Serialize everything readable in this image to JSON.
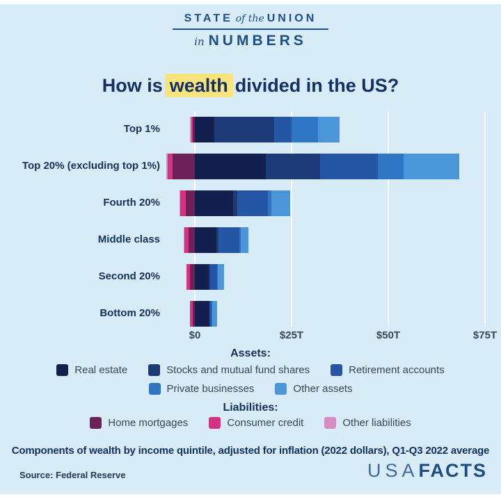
{
  "header": {
    "logo": {
      "state": "STATE",
      "of_the": "of the",
      "union": "UNION",
      "in": "in",
      "numbers": "NUMBERS"
    }
  },
  "title": {
    "prefix": "How is",
    "highlight": "wealth",
    "suffix": "divided in the US?"
  },
  "chart_data": {
    "type": "bar",
    "stacked": true,
    "orientation": "horizontal",
    "unit": "trillions of US dollars",
    "categories": [
      "Top 1%",
      "Top 20% (excluding top 1%)",
      "Fourth 20%",
      "Middle class",
      "Second 20%",
      "Bottom 20%"
    ],
    "series": [
      {
        "key": "real_estate",
        "name": "Real estate",
        "group": "assets",
        "color": "#131f4e",
        "values": [
          5.0,
          18.3,
          9.9,
          5.6,
          3.6,
          3.7
        ]
      },
      {
        "key": "stocks",
        "name": "Stocks and mutual fund shares",
        "group": "assets",
        "color": "#1d3b76",
        "values": [
          15.5,
          14.0,
          1.0,
          0.5,
          0.3,
          0.1
        ]
      },
      {
        "key": "retirement",
        "name": "Retirement accounts",
        "group": "assets",
        "color": "#2456a5",
        "values": [
          4.5,
          15.0,
          7.9,
          5.4,
          1.9,
          0.6
        ]
      },
      {
        "key": "private_businesses",
        "name": "Private businesses",
        "group": "assets",
        "color": "#2e76c4",
        "values": [
          6.8,
          6.6,
          0.9,
          0.4,
          0.2,
          0.1
        ]
      },
      {
        "key": "other_assets",
        "name": "Other assets",
        "group": "assets",
        "color": "#4a96d8",
        "values": [
          5.6,
          14.4,
          4.9,
          1.9,
          1.6,
          1.3
        ]
      },
      {
        "key": "home_mortgages",
        "name": "Home mortgages",
        "group": "liabilities",
        "color": "#6e2156",
        "values": [
          0.6,
          5.8,
          2.3,
          1.6,
          1.2,
          0.5
        ]
      },
      {
        "key": "consumer_credit",
        "name": "Consumer credit",
        "group": "liabilities",
        "color": "#d13480",
        "values": [
          0.3,
          1.3,
          1.5,
          1.1,
          0.9,
          0.7
        ]
      },
      {
        "key": "other_liabilities",
        "name": "Other liabilities",
        "group": "liabilities",
        "color": "#d78cc8",
        "values": [
          0.4,
          0.3,
          0.1,
          0.1,
          0.1,
          0.1
        ]
      }
    ],
    "x_axis": {
      "ticks": [
        "$0",
        "$25T",
        "$50T",
        "$75T"
      ],
      "values": [
        0,
        25,
        50,
        75
      ]
    },
    "legend_position": "bottom",
    "grid": true
  },
  "legend": {
    "assets_label": "Assets:",
    "liabilities_label": "Liabilities:"
  },
  "footer": {
    "footnote": "Components of wealth by income quintile, adjusted for inflation (2022 dollars), Q1-Q3 2022 average",
    "source": "Source: Federal Reserve",
    "brand_usa": "USA",
    "brand_facts": "FACTS"
  },
  "colors": {
    "background": "#d8ecf8",
    "highlight": "#f8e37c",
    "title_text": "#123064",
    "logo_blue": "#1d4e87",
    "brand_usa": "#3c6aa0",
    "brand_facts": "#1d4b82"
  }
}
